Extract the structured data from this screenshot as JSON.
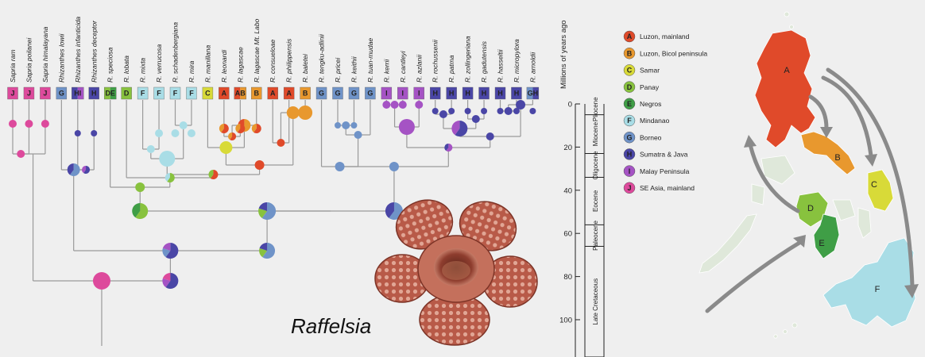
{
  "taxa": [
    {
      "name": "Sapria ram",
      "area": "J"
    },
    {
      "name": "Sapria poilanei",
      "area": "J"
    },
    {
      "name": "Sapria himalayana",
      "area": "J"
    },
    {
      "name": "Rhizanthes lowii",
      "area": "G"
    },
    {
      "name": "Rhizanthes infanticida",
      "area": "HI"
    },
    {
      "name": "Rhizanthes deceptor",
      "area": "H"
    },
    {
      "name": "R. speciosa",
      "area": "DE"
    },
    {
      "name": "R. lobata",
      "area": "D"
    },
    {
      "name": "R. mixta",
      "area": "F"
    },
    {
      "name": "R. verrucosa",
      "area": "F"
    },
    {
      "name": "R. schadenbergiana",
      "area": "F"
    },
    {
      "name": "R. mira",
      "area": "F"
    },
    {
      "name": "R. manillana",
      "area": "C"
    },
    {
      "name": "R. leonardi",
      "area": "A"
    },
    {
      "name": "R. lagascae",
      "area": "AB"
    },
    {
      "name": "R. lagascae Mt. Labo",
      "area": "B"
    },
    {
      "name": "R. consueloae",
      "area": "A"
    },
    {
      "name": "R. philippensis",
      "area": "A"
    },
    {
      "name": "R. baletei",
      "area": "B"
    },
    {
      "name": "R. tengku-adlinii",
      "area": "G"
    },
    {
      "name": "R. pricei",
      "area": "G"
    },
    {
      "name": "R. keithii",
      "area": "G"
    },
    {
      "name": "R. tuan-mudae",
      "area": "G"
    },
    {
      "name": "R. kerrii",
      "area": "I"
    },
    {
      "name": "R. cantleyi",
      "area": "I"
    },
    {
      "name": "R. azlanii",
      "area": "I"
    },
    {
      "name": "R. rochussenii",
      "area": "H"
    },
    {
      "name": "R. patma",
      "area": "H"
    },
    {
      "name": "R. zollingeriana",
      "area": "H"
    },
    {
      "name": "R. gadutensis",
      "area": "H"
    },
    {
      "name": "R. hasseltii",
      "area": "H"
    },
    {
      "name": "R. micropylora",
      "area": "H"
    },
    {
      "name": "R. arnoldii",
      "area": "GH"
    }
  ],
  "areas": [
    {
      "code": "A",
      "label": "Luzon, mainland",
      "color": "#e04a2a"
    },
    {
      "code": "B",
      "label": "Luzon, Bicol peninsula",
      "color": "#e8982e"
    },
    {
      "code": "C",
      "label": "Samar",
      "color": "#d8da38"
    },
    {
      "code": "D",
      "label": "Panay",
      "color": "#88c23e"
    },
    {
      "code": "E",
      "label": "Negros",
      "color": "#3f9e46"
    },
    {
      "code": "F",
      "label": "Mindanao",
      "color": "#a9dde6"
    },
    {
      "code": "G",
      "label": "Borneo",
      "color": "#6f93c8"
    },
    {
      "code": "H",
      "label": "Sumatra & Java",
      "color": "#4a46a6"
    },
    {
      "code": "I",
      "label": "Malay Peninsula",
      "color": "#a553c4"
    },
    {
      "code": "J",
      "label": "SE Asia, mainland",
      "color": "#dd4a9c"
    }
  ],
  "timescale": {
    "title": "Millions of years ago",
    "ticks": [
      0,
      20,
      40,
      60,
      80,
      100
    ],
    "epochs": [
      {
        "name": "Pliocene",
        "start": 0,
        "end": 5
      },
      {
        "name": "Miocene",
        "start": 5,
        "end": 23
      },
      {
        "name": "Oligocene",
        "start": 23,
        "end": 34
      },
      {
        "name": "Eocene",
        "start": 34,
        "end": 56
      },
      {
        "name": "Paleocene",
        "start": 56,
        "end": 66
      },
      {
        "name": "Late Cretaceous",
        "start": 66,
        "end": 120
      }
    ]
  },
  "flower_label": "Raffelsia",
  "map": {
    "labels": [
      "A",
      "B",
      "C",
      "D",
      "E",
      "F"
    ]
  }
}
